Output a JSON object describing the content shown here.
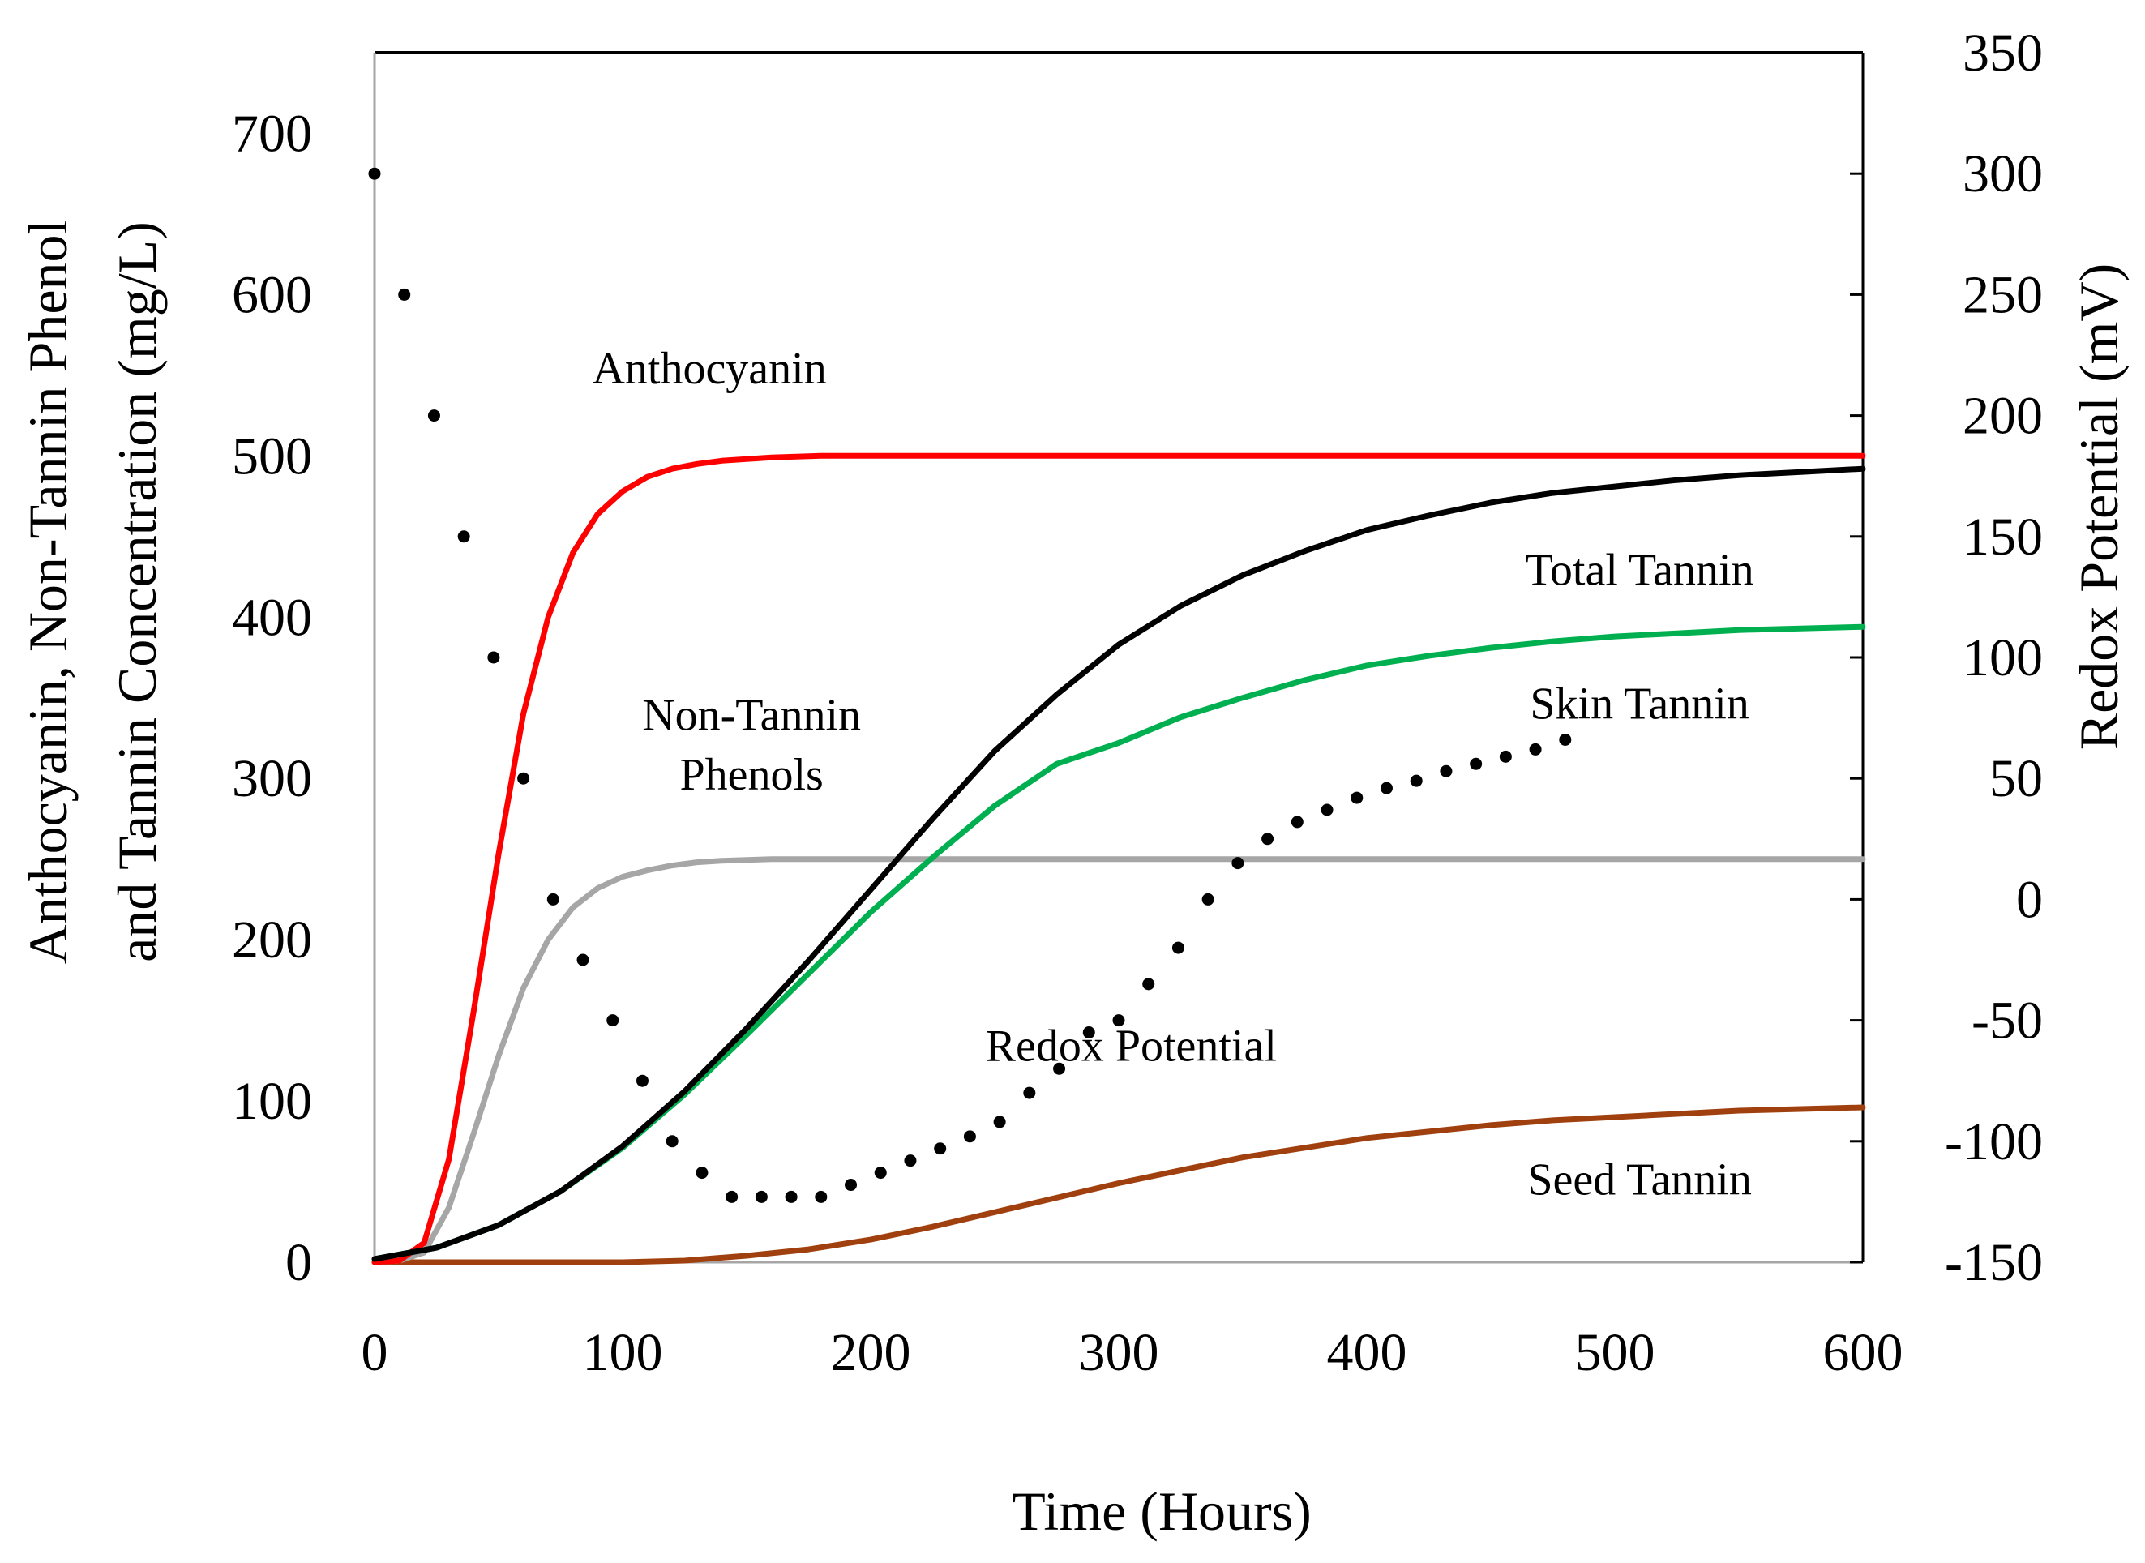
{
  "chart_data": {
    "type": "line",
    "title": "",
    "xlabel": "Time (Hours)",
    "ylabel_lines": [
      "Anthocyanin,  Non-Tannin  Phenol",
      "and Tannin Concentration (mg/L)"
    ],
    "y2label": "Redox Potential (mV)",
    "xlim": [
      0,
      600
    ],
    "ylim": [
      0,
      750
    ],
    "y2lim": [
      -150,
      350
    ],
    "xticks": [
      "0",
      "100",
      "200",
      "300",
      "400",
      "500",
      "600"
    ],
    "yticks": [
      "0",
      "100",
      "200",
      "300",
      "400",
      "500",
      "600",
      "700"
    ],
    "y2ticks": [
      "-150",
      "-100",
      "-50",
      "0",
      "50",
      "100",
      "150",
      "200",
      "250",
      "300",
      "350"
    ],
    "grid": false,
    "series": [
      {
        "name": "Anthocyanin",
        "axis": "left",
        "color": "#ff0000",
        "style": "solid",
        "label": "Anthocyanin",
        "x": [
          0,
          10,
          20,
          30,
          40,
          50,
          60,
          70,
          80,
          90,
          100,
          110,
          120,
          130,
          140,
          150,
          160,
          180,
          200,
          250,
          300,
          400,
          500,
          600
        ],
        "y": [
          0,
          1,
          12,
          64,
          156,
          253,
          340,
          400,
          440,
          464,
          478,
          487,
          492,
          495,
          497,
          498,
          499,
          500,
          500,
          500,
          500,
          500,
          500,
          500
        ]
      },
      {
        "name": "Non-Tannin Phenols",
        "axis": "left",
        "color": "#a6a6a6",
        "style": "solid",
        "label": [
          "Non-Tannin",
          "Phenols"
        ],
        "x": [
          0,
          10,
          20,
          30,
          40,
          50,
          60,
          70,
          80,
          90,
          100,
          110,
          120,
          130,
          140,
          150,
          160,
          180,
          200,
          250,
          300,
          400,
          500,
          600
        ],
        "y": [
          0,
          1,
          6,
          34,
          80,
          128,
          170,
          200,
          220,
          232,
          239,
          243,
          246,
          248,
          249,
          249.5,
          250,
          250,
          250,
          250,
          250,
          250,
          250,
          250
        ]
      },
      {
        "name": "Total Tannin",
        "axis": "left",
        "color": "#000000",
        "style": "solid",
        "label": "Total Tannin",
        "x": [
          0,
          25,
          50,
          75,
          100,
          125,
          150,
          175,
          200,
          225,
          250,
          275,
          300,
          325,
          350,
          375,
          400,
          425,
          450,
          475,
          500,
          525,
          550,
          575,
          600
        ],
        "y": [
          2,
          9,
          23,
          44,
          72,
          106,
          145,
          187,
          231,
          275,
          317,
          352,
          383,
          407,
          426,
          441,
          454,
          463,
          471,
          477,
          481,
          485,
          488,
          490,
          492
        ]
      },
      {
        "name": "Skin Tannin",
        "axis": "left",
        "color": "#00b050",
        "style": "solid",
        "label": "Skin Tannin",
        "x": [
          0,
          25,
          50,
          75,
          100,
          125,
          150,
          175,
          200,
          225,
          250,
          275,
          300,
          325,
          350,
          375,
          400,
          425,
          450,
          475,
          500,
          525,
          550,
          575,
          600
        ],
        "y": [
          2,
          9,
          23,
          44,
          71,
          104,
          141,
          179,
          217,
          251,
          283,
          309,
          322,
          338,
          350,
          361,
          370,
          376,
          381,
          385,
          388,
          390,
          392,
          393,
          394
        ]
      },
      {
        "name": "Seed Tannin",
        "axis": "left",
        "color": "#a0400f",
        "style": "solid",
        "label": "Seed Tannin",
        "x": [
          0,
          100,
          125,
          150,
          175,
          200,
          225,
          250,
          275,
          300,
          325,
          350,
          375,
          400,
          425,
          450,
          475,
          500,
          525,
          550,
          575,
          600
        ],
        "y": [
          0,
          0,
          1,
          4,
          8,
          14,
          22,
          31,
          40,
          49,
          57,
          65,
          71,
          77,
          81,
          85,
          88,
          90,
          92,
          94,
          95,
          96
        ]
      },
      {
        "name": "Redox Potential",
        "axis": "right",
        "color": "#000000",
        "style": "dotted",
        "label": "Redox Potential",
        "x": [
          0,
          12,
          24,
          36,
          48,
          60,
          72,
          84,
          96,
          108,
          120,
          132,
          144,
          156,
          168,
          180,
          192,
          204,
          216,
          228,
          240,
          252,
          264,
          276,
          288,
          300,
          312,
          324,
          336,
          348,
          360,
          372,
          384,
          396,
          408,
          420,
          432,
          444,
          456,
          468,
          480
        ],
        "y": [
          300,
          250,
          200,
          150,
          100,
          50,
          0,
          -25,
          -50,
          -75,
          -100,
          -113,
          -123,
          -123,
          -123,
          -123,
          -118,
          -113,
          -108,
          -103,
          -98,
          -92,
          -80,
          -70,
          -55,
          -50,
          -35,
          -20,
          0,
          15,
          25,
          32,
          37,
          42,
          46,
          49,
          53,
          56,
          59,
          62,
          66
        ]
      }
    ]
  }
}
